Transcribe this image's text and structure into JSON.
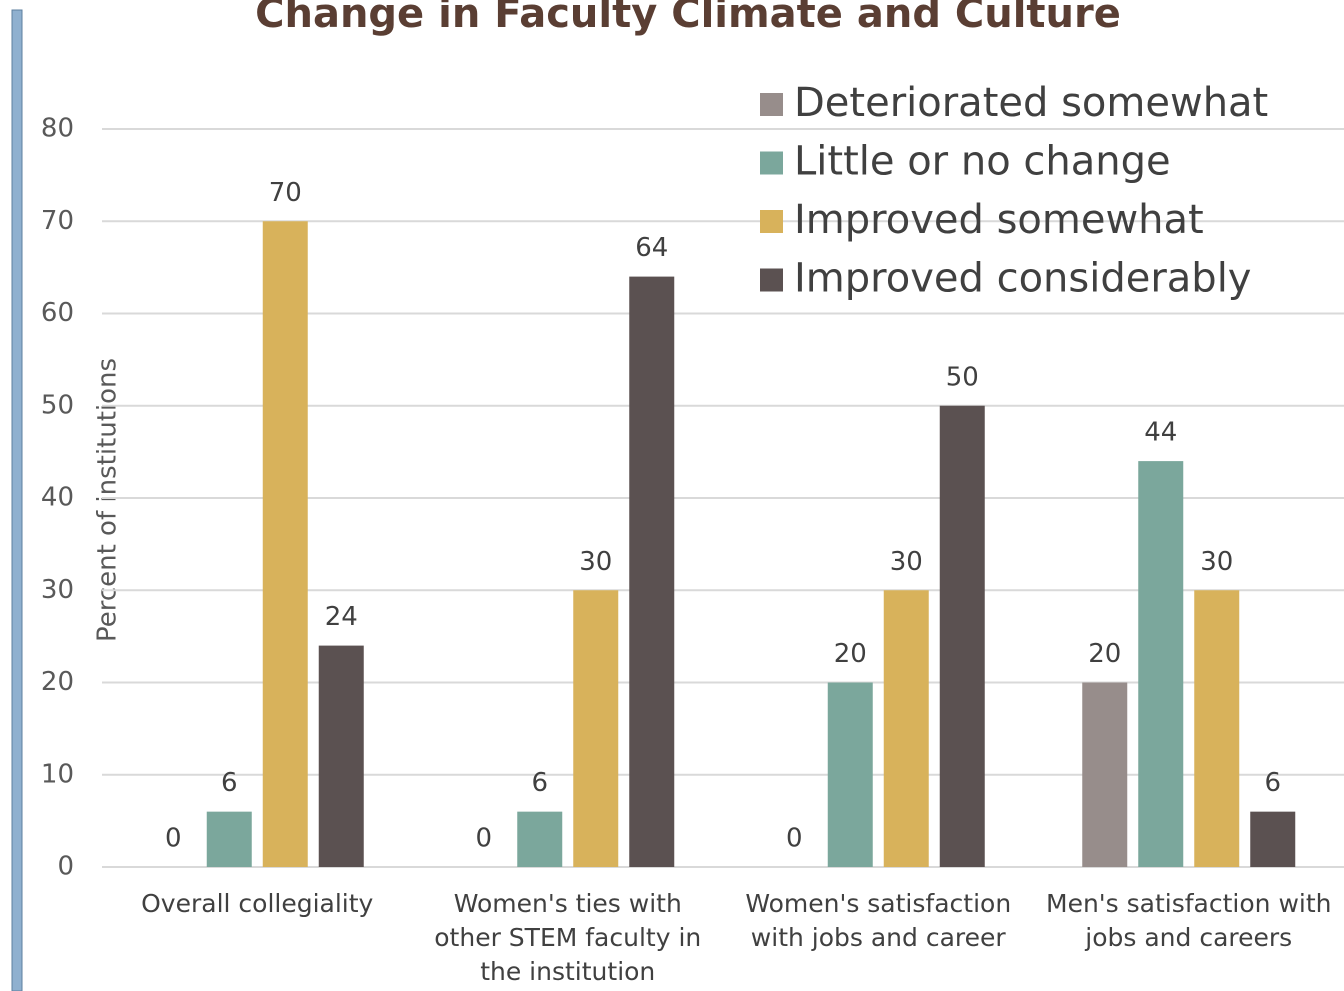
{
  "chart_data": {
    "type": "bar",
    "title": "Change in Faculty Climate and Culture",
    "ylabel": "Percent of institutions",
    "categories": [
      "Overall collegiality",
      "Women's ties with other STEM faculty in the institution",
      "Women's satisfaction with jobs and career",
      "Men's satisfaction with jobs and careers"
    ],
    "series": [
      {
        "name": "Deteriorated somewhat",
        "color": "#978d8b",
        "values": [
          0,
          0,
          0,
          20
        ]
      },
      {
        "name": "Little or no change",
        "color": "#7ba79c",
        "values": [
          6,
          6,
          20,
          44
        ]
      },
      {
        "name": "Improved somewhat",
        "color": "#d8b25b",
        "values": [
          70,
          30,
          30,
          30
        ]
      },
      {
        "name": "Improved considerably",
        "color": "#5b5151",
        "values": [
          24,
          64,
          50,
          6
        ]
      }
    ],
    "ylim": [
      0,
      80
    ],
    "yticks": [
      0,
      10,
      20,
      30,
      40,
      50,
      60,
      70,
      80
    ],
    "grid": true,
    "legend": "top-right"
  }
}
